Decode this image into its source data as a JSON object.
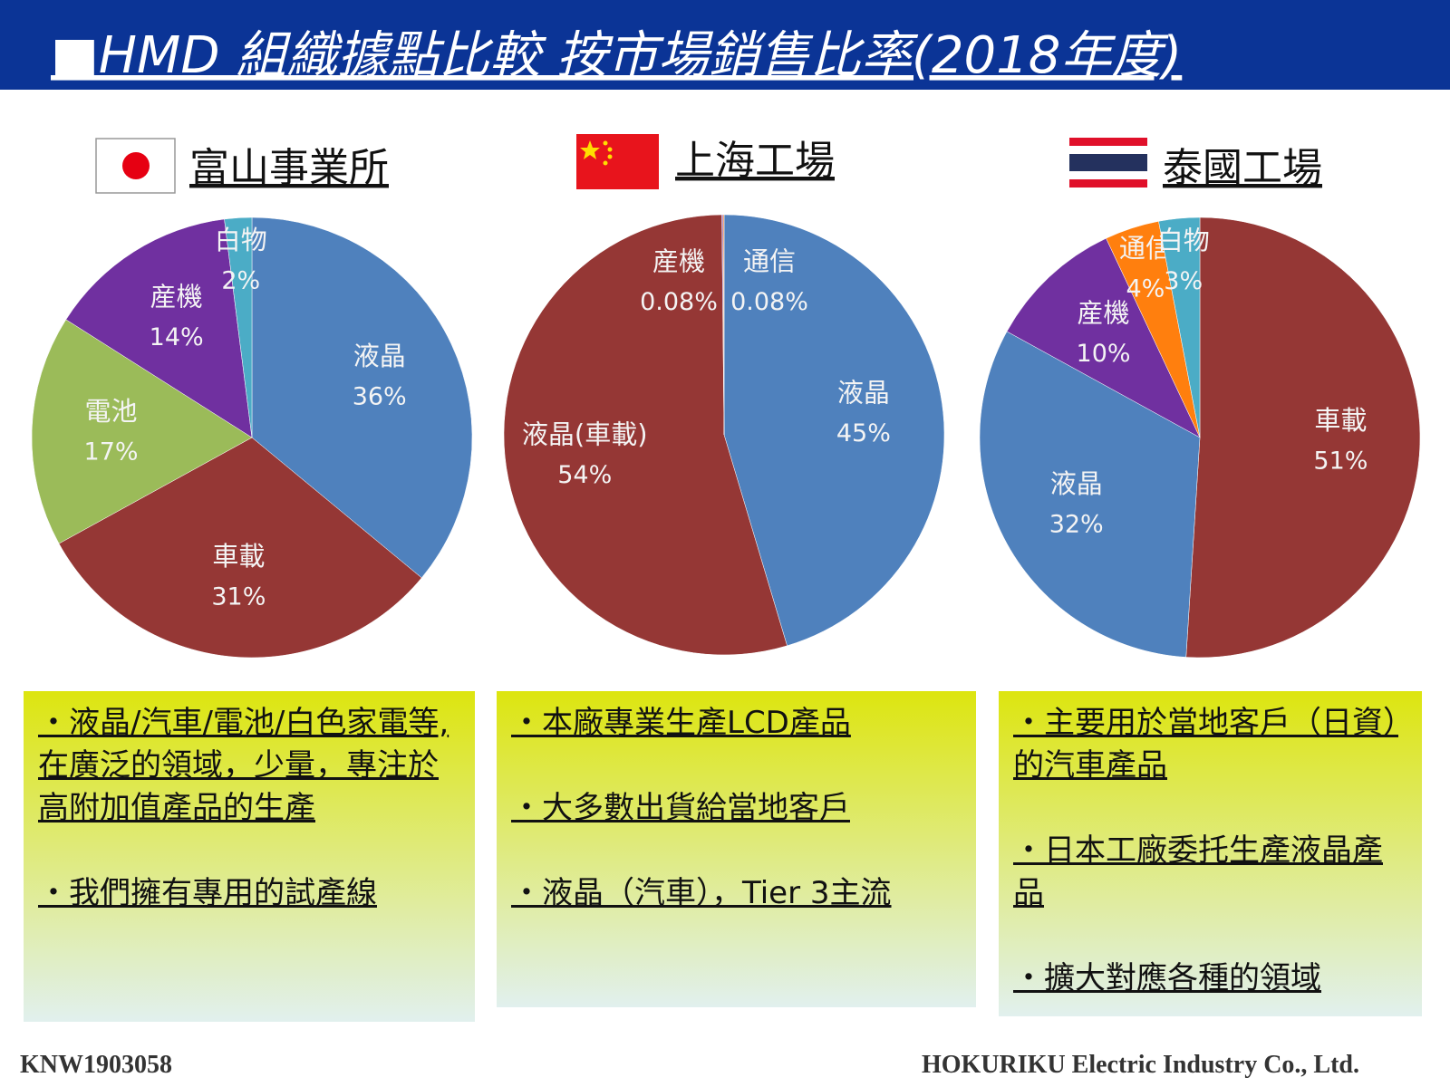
{
  "header": {
    "title": "■HMD 組織據點比較  按市場銷售比率(2018年度)"
  },
  "chart_data": [
    {
      "type": "pie",
      "title": "富山事業所",
      "categories": [
        "液晶",
        "車載",
        "電池",
        "産機",
        "白物"
      ],
      "values": [
        36,
        31,
        17,
        14,
        2
      ],
      "value_labels": [
        "36%",
        "31%",
        "17%",
        "14%",
        "2%"
      ],
      "colors": [
        "#4f81bd",
        "#953735",
        "#9bbb59",
        "#7030a0",
        "#4bacc6"
      ]
    },
    {
      "type": "pie",
      "title": "上海工場",
      "categories": [
        "液晶",
        "液晶(車載)",
        "産機",
        "通信"
      ],
      "values": [
        45,
        54,
        0.08,
        0.08
      ],
      "value_labels": [
        "45%",
        "54%",
        "0.08%",
        "0.08%"
      ],
      "colors": [
        "#4f81bd",
        "#953735",
        "#7030a0",
        "#f79646"
      ]
    },
    {
      "type": "pie",
      "title": "泰國工場",
      "categories": [
        "車載",
        "液晶",
        "産機",
        "通信",
        "白物"
      ],
      "values": [
        51,
        32,
        10,
        4,
        3
      ],
      "value_labels": [
        "51%",
        "32%",
        "10%",
        "4%",
        "3%"
      ],
      "colors": [
        "#953735",
        "#4f81bd",
        "#7030a0",
        "#ff7f0e",
        "#4bacc6"
      ]
    }
  ],
  "boxes": [
    {
      "paragraphs": [
        "・液晶/汽車/電池/白色家電等, 在廣泛的領域，少量，專注於高附加值產品的生產",
        "・我們擁有專用的試產線"
      ]
    },
    {
      "paragraphs": [
        "・本廠專業生產LCD產品",
        "・大多數出貨給當地客戶",
        "・液晶（汽車），Tier 3主流"
      ]
    },
    {
      "paragraphs": [
        "・主要用於當地客戶（日資）的汽車產品",
        "・日本工廠委托生產液晶產品",
        "・擴大對應各種的領域"
      ]
    }
  ],
  "footer": {
    "left": "KNW1903058",
    "right": "HOKURIKU Electric Industry Co., Ltd."
  }
}
